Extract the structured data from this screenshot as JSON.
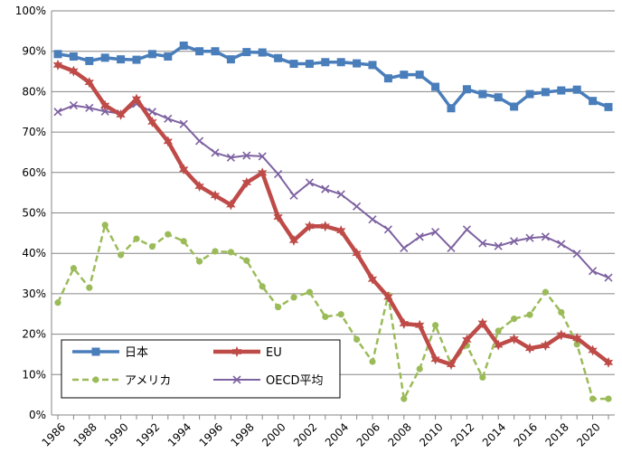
{
  "chart_data": {
    "type": "line",
    "x": [
      1986,
      1987,
      1988,
      1989,
      1990,
      1991,
      1992,
      1993,
      1994,
      1995,
      1996,
      1997,
      1998,
      1999,
      2000,
      2001,
      2002,
      2003,
      2004,
      2005,
      2006,
      2007,
      2008,
      2009,
      2010,
      2011,
      2012,
      2013,
      2014,
      2015,
      2016,
      2017,
      2018,
      2019,
      2020,
      2021
    ],
    "x_ticks": [
      "1986",
      "1988",
      "1990",
      "1992",
      "1994",
      "1996",
      "1998",
      "2000",
      "2002",
      "2004",
      "2006",
      "2008",
      "2010",
      "2012",
      "2014",
      "2016",
      "2018",
      "2020"
    ],
    "y_ticks": [
      "0%",
      "10%",
      "20%",
      "30%",
      "40%",
      "50%",
      "60%",
      "70%",
      "80%",
      "90%",
      "100%"
    ],
    "ylim": [
      0,
      100
    ],
    "grid": "horizontal",
    "legend": "bottom-left",
    "series": [
      {
        "name": "日本",
        "color": "#4A7EBB",
        "marker": "square",
        "dash": "solid",
        "values": [
          89.3,
          88.7,
          87.6,
          88.4,
          88.0,
          87.9,
          89.3,
          88.7,
          91.4,
          90.0,
          90.0,
          88.0,
          89.8,
          89.7,
          88.3,
          86.9,
          86.9,
          87.3,
          87.3,
          87.0,
          86.6,
          83.3,
          84.2,
          84.2,
          81.2,
          75.9,
          80.6,
          79.4,
          78.6,
          76.3,
          79.4,
          79.9,
          80.3,
          80.5,
          77.7,
          76.2
        ]
      },
      {
        "name": "EU",
        "color": "#BE4B48",
        "marker": "star",
        "dash": "solid",
        "values": [
          86.6,
          85.1,
          82.3,
          76.6,
          74.3,
          78.2,
          72.5,
          67.7,
          60.8,
          56.6,
          54.3,
          52.0,
          57.5,
          59.9,
          49.0,
          43.2,
          46.7,
          46.7,
          45.6,
          40.0,
          33.6,
          29.2,
          22.6,
          22.2,
          13.8,
          12.5,
          18.6,
          22.7,
          17.3,
          18.8,
          16.5,
          17.2,
          19.8,
          19.0,
          16.0,
          13.0
        ]
      },
      {
        "name": "アメリカ",
        "color": "#9BBB59",
        "marker": "circle",
        "dash": "dashed",
        "values": [
          27.8,
          36.3,
          31.5,
          47.0,
          39.6,
          43.6,
          41.7,
          44.7,
          43.0,
          38.0,
          40.5,
          40.3,
          38.2,
          31.8,
          26.7,
          29.1,
          30.4,
          24.3,
          24.9,
          18.7,
          13.2,
          29.7,
          4.0,
          11.4,
          22.2,
          12.5,
          17.2,
          9.3,
          20.8,
          23.8,
          24.8,
          30.4,
          25.4,
          17.5,
          4.0,
          4.0
        ]
      },
      {
        "name": "OECD平均",
        "color": "#7E62A1",
        "marker": "cross",
        "dash": "solid",
        "values": [
          75.0,
          76.6,
          76.0,
          75.1,
          74.6,
          77.0,
          75.0,
          73.3,
          72.0,
          67.8,
          64.9,
          63.7,
          64.2,
          64.0,
          59.6,
          54.3,
          57.5,
          55.9,
          54.6,
          51.6,
          48.4,
          45.9,
          41.3,
          44.1,
          45.3,
          41.3,
          45.9,
          42.5,
          41.8,
          43.0,
          43.8,
          44.1,
          42.3,
          39.9,
          35.6,
          34.0
        ]
      }
    ]
  }
}
